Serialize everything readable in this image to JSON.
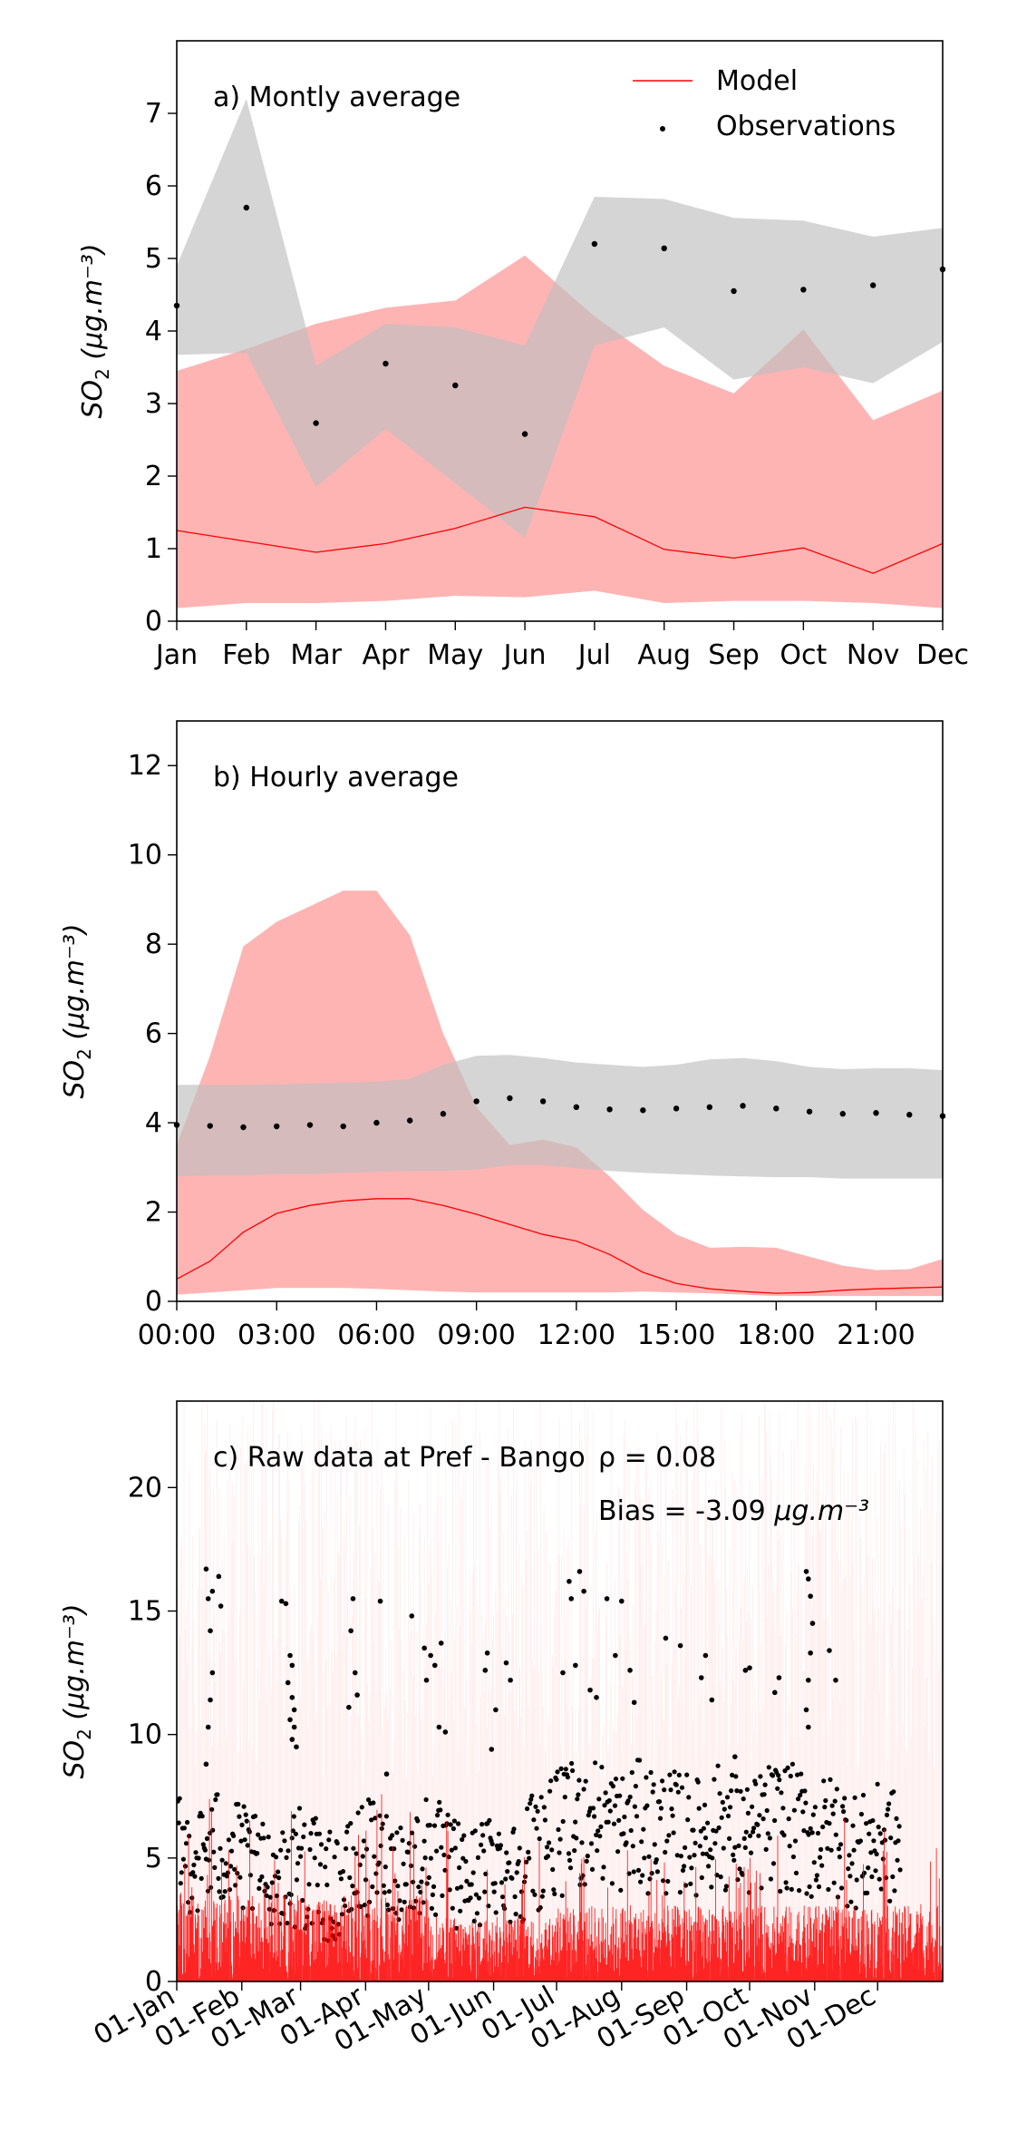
{
  "chart_data": [
    {
      "type": "line",
      "panel": "a",
      "annotation": "a) Montly average",
      "ylabel_base": "SO",
      "ylabel_sub": "2",
      "ylabel_units": "(μg.m⁻³)",
      "x_ticks": [
        "Jan",
        "Feb",
        "Mar",
        "Apr",
        "May",
        "Jun",
        "Jul",
        "Aug",
        "Sep",
        "Oct",
        "Nov",
        "Dec"
      ],
      "ylim": [
        0,
        8
      ],
      "y_ticks": [
        0,
        1,
        2,
        3,
        4,
        5,
        6,
        7
      ],
      "legend": {
        "position": "top-right",
        "model_label": "Model",
        "obs_label": "Observations"
      },
      "model_mean": [
        1.25,
        1.1,
        0.95,
        1.07,
        1.28,
        1.57,
        1.44,
        0.99,
        0.87,
        1.01,
        0.66,
        1.07
      ],
      "model_upper": [
        3.45,
        3.75,
        4.1,
        4.32,
        4.42,
        5.04,
        4.2,
        3.52,
        3.14,
        4.02,
        2.77,
        3.18
      ],
      "model_lower": [
        0.18,
        0.25,
        0.25,
        0.28,
        0.35,
        0.33,
        0.42,
        0.25,
        0.28,
        0.28,
        0.25,
        0.18
      ],
      "obs_mean": [
        4.35,
        5.7,
        2.73,
        3.55,
        3.25,
        2.58,
        5.2,
        5.14,
        4.55,
        4.57,
        4.63,
        4.85
      ],
      "obs_upper": [
        4.9,
        7.2,
        3.52,
        4.1,
        4.05,
        3.8,
        5.85,
        5.82,
        5.56,
        5.52,
        5.3,
        5.42
      ],
      "obs_lower": [
        3.67,
        3.7,
        1.85,
        2.65,
        1.9,
        1.15,
        3.8,
        4.05,
        3.33,
        3.5,
        3.28,
        3.85
      ],
      "colors": {
        "model_line": "#ff0000",
        "model_band": "#ffb0b0",
        "obs_band": "#bfbfbf",
        "obs_point": "#000000"
      }
    },
    {
      "type": "line",
      "panel": "b",
      "annotation": "b) Hourly average",
      "ylabel_base": "SO",
      "ylabel_sub": "2",
      "ylabel_units": "(μg.m⁻³)",
      "hours": [
        0,
        1,
        2,
        3,
        4,
        5,
        6,
        7,
        8,
        9,
        10,
        11,
        12,
        13,
        14,
        15,
        16,
        17,
        18,
        19,
        20,
        21,
        22,
        23
      ],
      "x_tick_values": [
        0,
        3,
        6,
        9,
        12,
        15,
        18,
        21
      ],
      "x_ticks": [
        "00:00",
        "03:00",
        "06:00",
        "09:00",
        "12:00",
        "15:00",
        "18:00",
        "21:00"
      ],
      "xlim": [
        0,
        23
      ],
      "ylim": [
        0,
        13
      ],
      "y_ticks": [
        0,
        2,
        4,
        6,
        8,
        10,
        12
      ],
      "model_mean": [
        0.5,
        0.9,
        1.55,
        1.97,
        2.15,
        2.25,
        2.3,
        2.3,
        2.15,
        1.95,
        1.72,
        1.5,
        1.35,
        1.05,
        0.65,
        0.4,
        0.28,
        0.22,
        0.18,
        0.2,
        0.25,
        0.28,
        0.3,
        0.32
      ],
      "model_upper": [
        3.5,
        5.5,
        7.95,
        8.5,
        8.85,
        9.2,
        9.2,
        8.2,
        6.0,
        4.35,
        3.5,
        3.62,
        3.45,
        2.8,
        2.05,
        1.5,
        1.2,
        1.22,
        1.2,
        1.0,
        0.8,
        0.7,
        0.72,
        0.95
      ],
      "model_lower": [
        0.15,
        0.2,
        0.25,
        0.3,
        0.3,
        0.3,
        0.28,
        0.25,
        0.22,
        0.2,
        0.2,
        0.2,
        0.2,
        0.2,
        0.22,
        0.2,
        0.18,
        0.15,
        0.12,
        0.12,
        0.12,
        0.12,
        0.12,
        0.12
      ],
      "obs_mean": [
        3.95,
        3.93,
        3.9,
        3.92,
        3.95,
        3.92,
        4.0,
        4.05,
        4.2,
        4.48,
        4.55,
        4.48,
        4.35,
        4.3,
        4.28,
        4.32,
        4.35,
        4.38,
        4.32,
        4.25,
        4.2,
        4.22,
        4.18,
        4.15
      ],
      "obs_upper": [
        4.85,
        4.85,
        4.85,
        4.86,
        4.88,
        4.9,
        4.92,
        4.98,
        5.3,
        5.5,
        5.52,
        5.45,
        5.35,
        5.3,
        5.25,
        5.3,
        5.42,
        5.45,
        5.38,
        5.25,
        5.2,
        5.22,
        5.22,
        5.18
      ],
      "obs_lower": [
        2.8,
        2.82,
        2.82,
        2.85,
        2.85,
        2.88,
        2.9,
        2.92,
        2.92,
        2.95,
        3.05,
        3.05,
        2.98,
        2.92,
        2.88,
        2.85,
        2.82,
        2.8,
        2.78,
        2.78,
        2.75,
        2.75,
        2.75,
        2.75
      ]
    },
    {
      "type": "scatter",
      "panel": "c",
      "annotation": "c) Raw data at Pref - Bango",
      "stat_r": "ρ = 0.08",
      "stat_bias": "Bias = -3.09",
      "stat_bias_units": "μg.m⁻³",
      "ylabel_base": "SO",
      "ylabel_sub": "2",
      "ylabel_units": "(μg.m⁻³)",
      "x_ticks": [
        "01-Jan",
        "01-Feb",
        "01-Mar",
        "01-Apr",
        "01-May",
        "01-Jun",
        "01-Jul",
        "01-Aug",
        "01-Sep",
        "01-Oct",
        "01-Nov",
        "01-Dec"
      ],
      "x_tick_days": [
        0,
        31,
        59,
        90,
        120,
        151,
        181,
        212,
        243,
        273,
        304,
        334
      ],
      "xlim_days": [
        0,
        365
      ],
      "ylim": [
        0,
        23.5
      ],
      "y_ticks": [
        0,
        5,
        10,
        15,
        20
      ],
      "obs_envelope_days": [
        0,
        10,
        20,
        31,
        40,
        50,
        59,
        70,
        80,
        90,
        100,
        110,
        120,
        130,
        140,
        151,
        160,
        170,
        181,
        190,
        200,
        212,
        220,
        230,
        243,
        250,
        260,
        273,
        280,
        290,
        304,
        315,
        325,
        334,
        345
      ],
      "obs_typical_upper": [
        7.5,
        7.0,
        8.0,
        7.2,
        6.5,
        6.0,
        7.8,
        6.0,
        6.2,
        7.5,
        7.0,
        6.5,
        7.8,
        6.8,
        6.2,
        7.0,
        6.5,
        8.0,
        8.5,
        9.0,
        9.2,
        8.5,
        9.0,
        8.6,
        8.5,
        8.2,
        9.0,
        8.0,
        8.8,
        9.0,
        8.2,
        8.5,
        7.5,
        8.0,
        7.8
      ],
      "obs_typical_lower": [
        3.0,
        2.6,
        2.8,
        2.5,
        2.4,
        2.2,
        2.0,
        1.5,
        1.5,
        2.5,
        2.8,
        2.2,
        2.5,
        2.0,
        1.8,
        2.6,
        2.2,
        2.5,
        3.5,
        3.4,
        3.8,
        3.5,
        3.6,
        3.4,
        3.4,
        3.5,
        3.6,
        3.2,
        3.5,
        3.6,
        3.0,
        3.2,
        2.8,
        3.0,
        3.0
      ],
      "obs_outliers": [
        [
          14,
          16.7
        ],
        [
          15,
          15.5
        ],
        [
          16,
          14.2
        ],
        [
          17,
          15.8
        ],
        [
          20,
          16.4
        ],
        [
          21,
          15.2
        ],
        [
          17,
          12.5
        ],
        [
          16,
          11.4
        ],
        [
          15,
          10.3
        ],
        [
          14,
          8.8
        ],
        [
          50,
          15.4
        ],
        [
          52,
          15.3
        ],
        [
          54,
          13.2
        ],
        [
          55,
          12.8
        ],
        [
          53,
          12.1
        ],
        [
          55,
          11.5
        ],
        [
          56,
          11.0
        ],
        [
          54,
          10.6
        ],
        [
          56,
          10.3
        ],
        [
          55,
          9.8
        ],
        [
          57,
          9.5
        ],
        [
          83,
          14.2
        ],
        [
          84,
          15.5
        ],
        [
          85,
          12.5
        ],
        [
          86,
          11.6
        ],
        [
          82,
          11.1
        ],
        [
          97,
          15.4
        ],
        [
          100,
          8.4
        ],
        [
          112,
          14.8
        ],
        [
          118,
          13.5
        ],
        [
          119,
          12.2
        ],
        [
          121,
          13.2
        ],
        [
          123,
          12.8
        ],
        [
          126,
          13.7
        ],
        [
          125,
          10.3
        ],
        [
          128,
          10.1
        ],
        [
          147,
          12.6
        ],
        [
          148,
          13.3
        ],
        [
          150,
          9.4
        ],
        [
          152,
          11.0
        ],
        [
          157,
          12.9
        ],
        [
          159,
          12.2
        ],
        [
          184,
          12.5
        ],
        [
          187,
          16.2
        ],
        [
          188,
          15.5
        ],
        [
          190,
          12.8
        ],
        [
          192,
          16.6
        ],
        [
          194,
          15.8
        ],
        [
          197,
          11.8
        ],
        [
          200,
          11.5
        ],
        [
          205,
          15.5
        ],
        [
          209,
          13.2
        ],
        [
          212,
          15.4
        ],
        [
          216,
          12.6
        ],
        [
          218,
          11.3
        ],
        [
          233,
          13.9
        ],
        [
          240,
          13.6
        ],
        [
          250,
          12.3
        ],
        [
          252,
          13.2
        ],
        [
          255,
          11.4
        ],
        [
          266,
          9.1
        ],
        [
          271,
          12.6
        ],
        [
          273,
          12.7
        ],
        [
          285,
          11.7
        ],
        [
          287,
          12.3
        ],
        [
          300,
          16.6
        ],
        [
          301,
          16.3
        ],
        [
          302,
          15.6
        ],
        [
          303,
          14.5
        ],
        [
          302,
          13.3
        ],
        [
          301,
          12.2
        ],
        [
          300,
          11.0
        ],
        [
          301,
          10.3
        ],
        [
          311,
          13.4
        ],
        [
          314,
          12.2
        ]
      ],
      "colors": {
        "model_line": "#ff0000",
        "model_faint": "#ffd0d0",
        "obs_point": "#000000"
      }
    }
  ]
}
